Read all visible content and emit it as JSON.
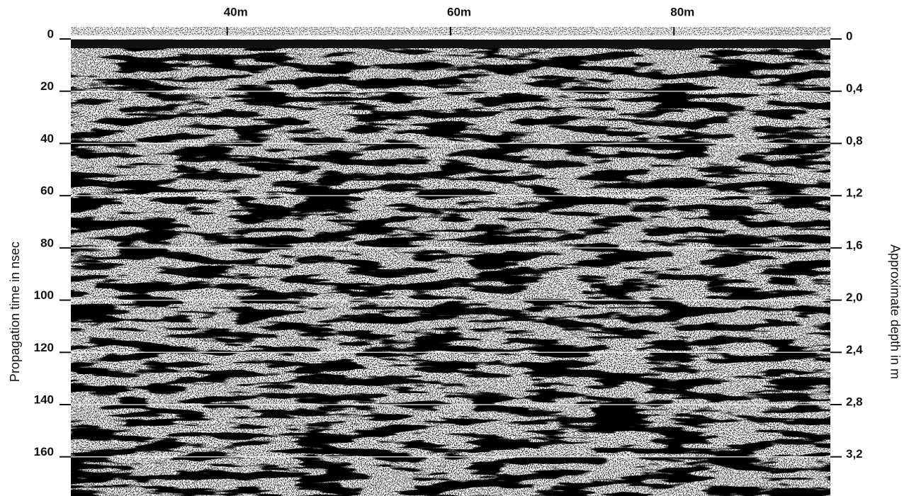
{
  "chart_data": {
    "type": "radargram",
    "xlim": [
      26,
      94
    ],
    "xticks": [
      {
        "value": 40,
        "label": "40m"
      },
      {
        "value": 60,
        "label": "60m"
      },
      {
        "value": 80,
        "label": "80m"
      }
    ],
    "ylabel": "Propagation time in nsec",
    "ylim": [
      0,
      175
    ],
    "yticks": [
      0,
      20,
      40,
      60,
      80,
      100,
      120,
      140,
      160
    ],
    "y2label": "Approximate depth in m",
    "y2lim": [
      0,
      3.5
    ],
    "y2ticks": [
      0,
      {
        "value": 0.4,
        "label": "0,4"
      },
      {
        "value": 0.8,
        "label": "0,8"
      },
      {
        "value": 1.2,
        "label": "1,2"
      },
      {
        "value": 1.6,
        "label": "1,6"
      },
      {
        "value": 2.0,
        "label": "2,0"
      },
      {
        "value": 2.4,
        "label": "2,4"
      },
      {
        "value": 2.8,
        "label": "2,8"
      },
      {
        "value": 3.2,
        "label": "3,2"
      }
    ],
    "grid": true
  }
}
